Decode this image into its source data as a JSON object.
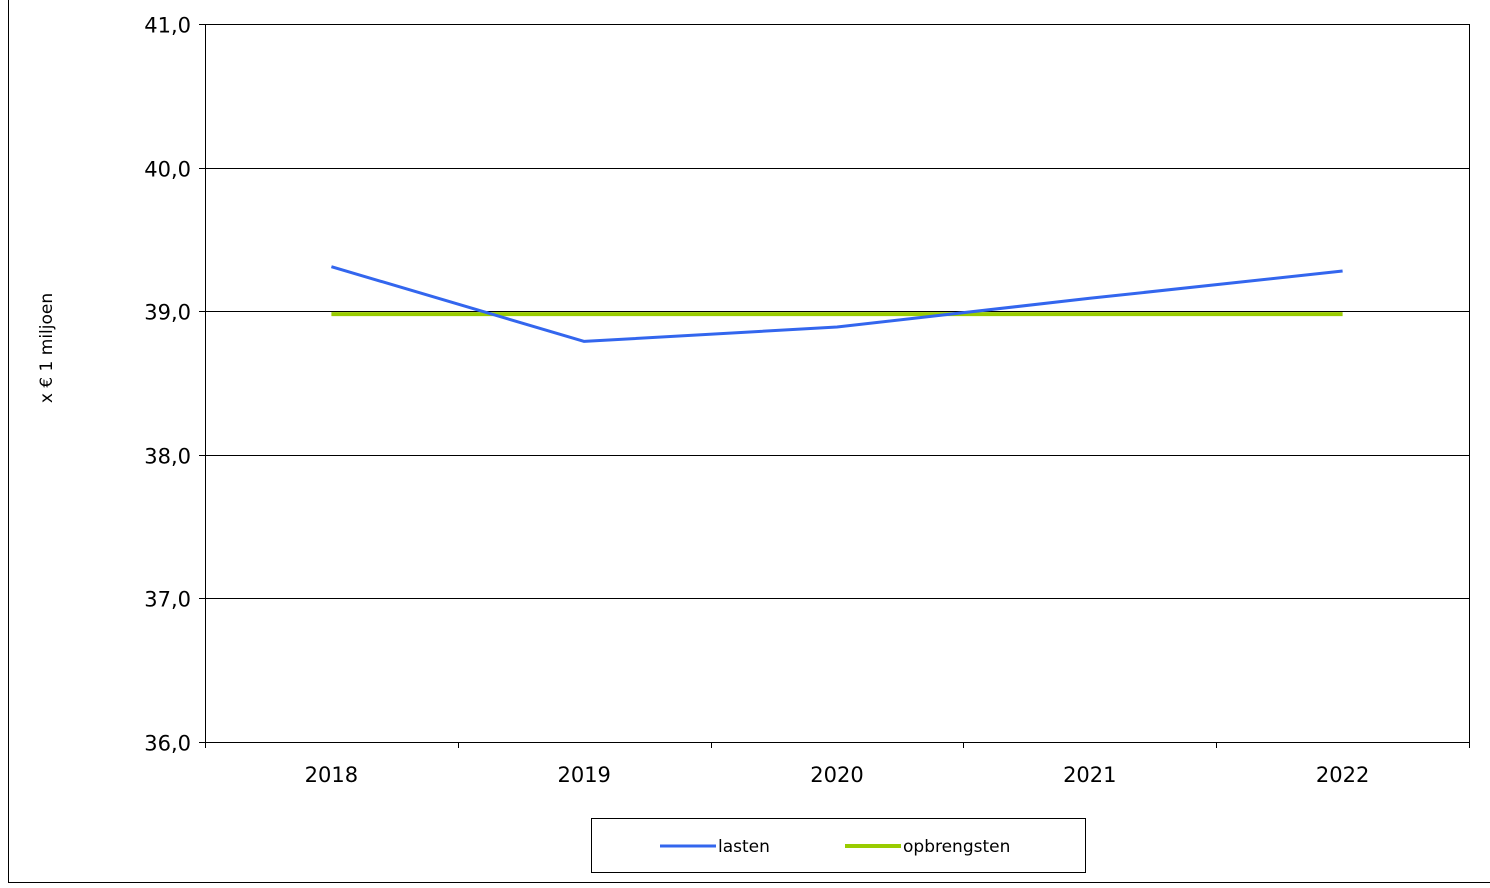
{
  "chart_data": {
    "type": "line",
    "title": "",
    "xlabel": "",
    "ylabel": "x € 1 miljoen",
    "categories": [
      "2018",
      "2019",
      "2020",
      "2021",
      "2022"
    ],
    "ylim": [
      36.0,
      41.0
    ],
    "yticks": [
      "36,0",
      "37,0",
      "38,0",
      "39,0",
      "40,0",
      "41,0"
    ],
    "grid": "horizontal",
    "legend_position": "bottom",
    "series": [
      {
        "name": "lasten",
        "color": "#3366ee",
        "values": [
          39.31,
          38.79,
          38.89,
          39.09,
          39.28
        ]
      },
      {
        "name": "opbrengsten",
        "color": "#99cc00",
        "values": [
          38.98,
          38.98,
          38.98,
          38.98,
          38.98
        ]
      }
    ]
  }
}
